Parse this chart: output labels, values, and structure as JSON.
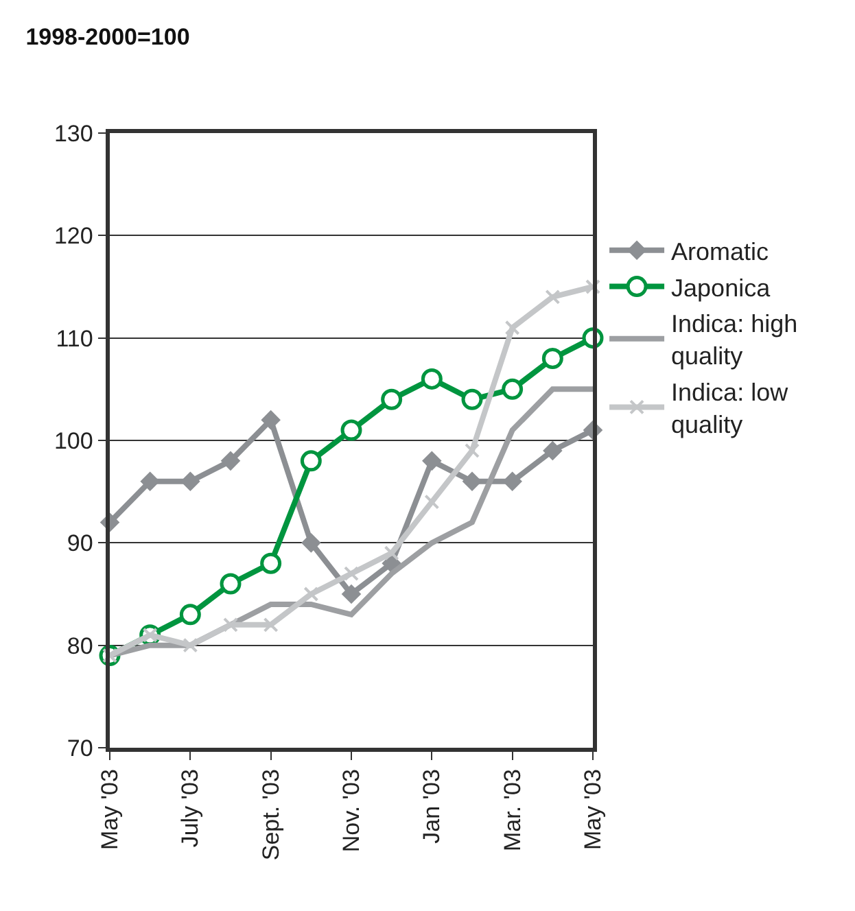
{
  "chart_data": {
    "type": "line",
    "title": "1998-2000=100",
    "categories": [
      "May '03",
      null,
      "July '03",
      null,
      "Sept. '03",
      null,
      "Nov. '03",
      null,
      "Jan '03",
      null,
      "Mar. '03",
      null,
      "May '03"
    ],
    "series": [
      {
        "name": "Aromatic",
        "color": "#8c8f93",
        "marker": "diamond",
        "values": [
          92,
          96,
          96,
          98,
          102,
          90,
          85,
          88,
          98,
          96,
          96,
          99,
          101
        ]
      },
      {
        "name": "Japonica",
        "color": "#00953f",
        "marker": "circle",
        "values": [
          79,
          81,
          83,
          86,
          88,
          98,
          101,
          104,
          106,
          104,
          105,
          108,
          110
        ]
      },
      {
        "name": "Indica: high quality",
        "color": "#9d9fa2",
        "marker": "none",
        "values": [
          79,
          80,
          80,
          82,
          84,
          84,
          83,
          87,
          90,
          92,
          101,
          105,
          105
        ]
      },
      {
        "name": "Indica: low quality",
        "color": "#c4c6c8",
        "marker": "cross",
        "values": [
          79,
          81,
          80,
          82,
          82,
          85,
          87,
          89,
          94,
          99,
          111,
          114,
          115
        ]
      }
    ],
    "ylim": [
      70,
      130
    ],
    "yticks": [
      70,
      80,
      90,
      100,
      110,
      120,
      130
    ],
    "grid": "y",
    "legend": "right",
    "line_style": "solid"
  }
}
